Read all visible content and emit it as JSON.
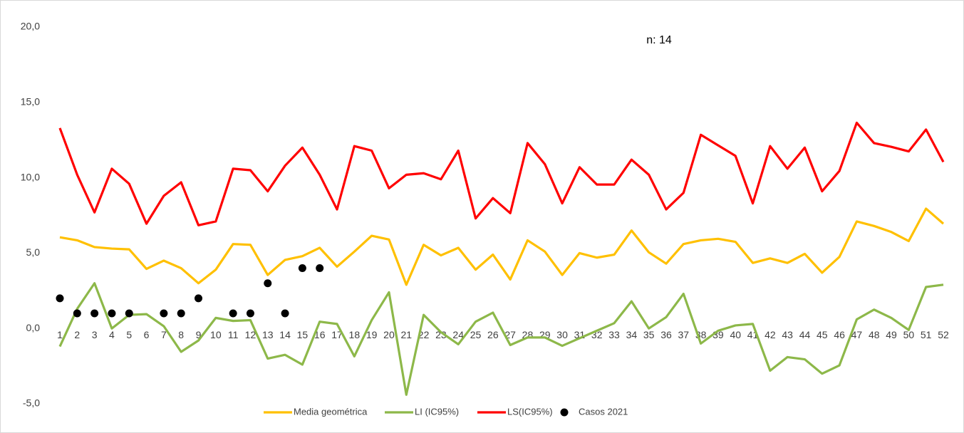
{
  "chart_data": {
    "type": "line",
    "annotation": "n: 14",
    "categories": [
      "1",
      "2",
      "3",
      "4",
      "5",
      "6",
      "7",
      "8",
      "9",
      "10",
      "11",
      "12",
      "13",
      "14",
      "15",
      "16",
      "17",
      "18",
      "19",
      "20",
      "21",
      "22",
      "23",
      "24",
      "25",
      "26",
      "27",
      "28",
      "29",
      "30",
      "31",
      "32",
      "33",
      "34",
      "35",
      "36",
      "37",
      "38",
      "39",
      "40",
      "41",
      "42",
      "43",
      "44",
      "45",
      "46",
      "47",
      "48",
      "49",
      "50",
      "51",
      "52"
    ],
    "ylim": [
      -5,
      20
    ],
    "yticks": [
      {
        "value": -5,
        "label": "-5,0"
      },
      {
        "value": 0,
        "label": "0,0"
      },
      {
        "value": 5,
        "label": "5,0"
      },
      {
        "value": 10,
        "label": "10,0"
      },
      {
        "value": 15,
        "label": "15,0"
      },
      {
        "value": 20,
        "label": "20,0"
      }
    ],
    "grid": false,
    "legend": "bottom",
    "series": [
      {
        "name": "Media geométrica",
        "color": "#FFC000",
        "type": "line",
        "values": [
          6.05,
          5.85,
          5.4,
          5.3,
          5.25,
          3.95,
          4.5,
          4.0,
          3.0,
          3.9,
          5.6,
          5.55,
          3.55,
          4.55,
          4.8,
          5.35,
          4.1,
          5.1,
          6.15,
          5.9,
          2.9,
          5.55,
          4.85,
          5.35,
          3.9,
          4.9,
          3.25,
          5.85,
          5.1,
          3.55,
          5.0,
          4.7,
          4.9,
          6.5,
          5.05,
          4.3,
          5.6,
          5.85,
          5.95,
          5.75,
          4.35,
          4.65,
          4.35,
          4.95,
          3.7,
          4.75,
          7.1,
          6.8,
          6.4,
          5.8,
          7.95,
          6.95
        ]
      },
      {
        "name": "LI (IC95%)",
        "color": "#8DB849",
        "type": "line",
        "values": [
          -1.2,
          1.3,
          3.0,
          0,
          0.9,
          0.95,
          0.15,
          -1.55,
          -0.8,
          0.7,
          0.5,
          0.55,
          -2.0,
          -1.75,
          -2.4,
          0.45,
          0.3,
          -1.85,
          0.55,
          2.4,
          -4.4,
          0.9,
          -0.25,
          -1.05,
          0.45,
          1.05,
          -1.1,
          -0.6,
          -0.6,
          -1.15,
          -0.65,
          -0.15,
          0.35,
          1.8,
          0,
          0.75,
          2.3,
          -1.0,
          -0.15,
          0.2,
          0.3,
          -2.8,
          -1.9,
          -2.05,
          -3.0,
          -2.45,
          0.6,
          1.25,
          0.7,
          -0.1,
          2.75,
          2.9
        ]
      },
      {
        "name": "LS(IC95%)",
        "color": "#FF0000",
        "type": "line",
        "values": [
          13.3,
          10.2,
          7.7,
          10.6,
          9.6,
          6.95,
          8.8,
          9.7,
          6.85,
          7.1,
          10.6,
          10.5,
          9.1,
          10.8,
          12.0,
          10.2,
          7.9,
          12.1,
          11.8,
          9.3,
          10.2,
          10.3,
          9.9,
          11.8,
          7.3,
          8.65,
          7.65,
          12.3,
          10.9,
          8.3,
          10.7,
          9.55,
          9.55,
          11.2,
          10.2,
          7.9,
          9.0,
          12.85,
          12.15,
          11.45,
          8.3,
          12.1,
          10.6,
          12.0,
          9.1,
          10.45,
          13.65,
          12.3,
          12.05,
          11.75,
          13.2,
          11.05
        ]
      },
      {
        "name": "Casos 2021",
        "color": "#000000",
        "type": "scatter",
        "values": [
          2,
          1,
          1,
          1,
          1,
          null,
          1,
          1,
          2,
          null,
          1,
          1,
          3,
          1,
          4,
          4,
          null,
          null,
          null,
          null,
          null,
          null,
          null,
          null,
          null,
          null,
          null,
          null,
          null,
          null,
          null,
          null,
          null,
          null,
          null,
          null,
          null,
          null,
          null,
          null,
          null,
          null,
          null,
          null,
          null,
          null,
          null,
          null,
          null,
          null,
          null,
          null
        ]
      }
    ]
  }
}
